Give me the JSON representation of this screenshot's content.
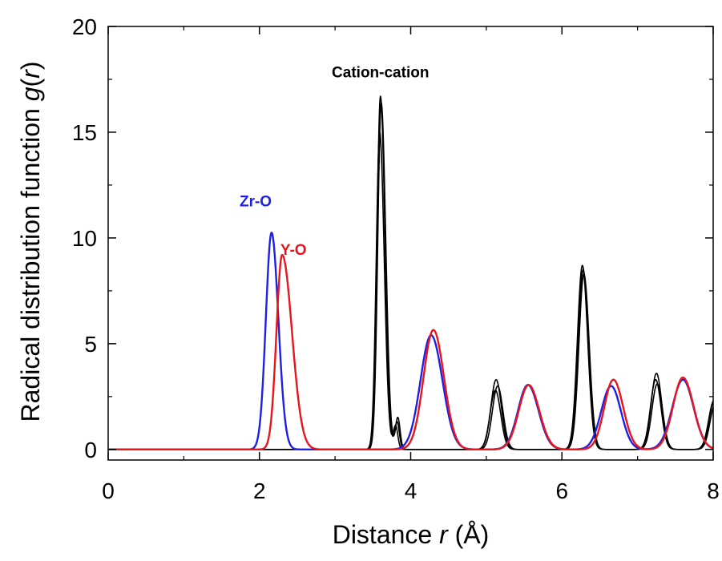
{
  "chart_data": {
    "type": "line",
    "xlabel": {
      "prefix": "Distance ",
      "var": "r",
      "suffix": " (Å)"
    },
    "ylabel": {
      "prefix": "Radical distribution function ",
      "var": "g",
      "open": "(",
      "var2": "r",
      "close": ")"
    },
    "xlim": [
      0,
      8
    ],
    "ylim": [
      -0.5,
      20
    ],
    "xticks": [
      0,
      2,
      4,
      6,
      8
    ],
    "yticks": [
      0,
      5,
      10,
      15,
      20
    ],
    "grid": false,
    "colors": {
      "zr_o": "#1f1fe6",
      "y_o": "#e8161b",
      "cation": "#000000"
    },
    "annotations": [
      {
        "text": "Cation-cation",
        "x": 3.6,
        "y": 17.6,
        "color": "#000000"
      },
      {
        "text": "Zr-O",
        "x": 1.95,
        "y": 11.5,
        "color": "#1f1fe6"
      },
      {
        "text": "Y-O",
        "x": 2.45,
        "y": 9.2,
        "color": "#e8161b"
      }
    ],
    "series": [
      {
        "key": "zr_o",
        "peaks": [
          {
            "mu": 2.16,
            "amp": 10.25,
            "sl": 0.075,
            "sr": 0.09
          },
          {
            "mu": 4.27,
            "amp": 5.4,
            "sl": 0.14,
            "sr": 0.15
          },
          {
            "mu": 5.55,
            "amp": 3.05,
            "sl": 0.13,
            "sr": 0.14
          },
          {
            "mu": 6.65,
            "amp": 3.0,
            "sl": 0.13,
            "sr": 0.13
          },
          {
            "mu": 7.6,
            "amp": 3.3,
            "sl": 0.14,
            "sr": 0.14
          }
        ]
      },
      {
        "key": "y_o",
        "peaks": [
          {
            "mu": 2.3,
            "amp": 9.2,
            "sl": 0.075,
            "sr": 0.13
          },
          {
            "mu": 4.3,
            "amp": 5.65,
            "sl": 0.13,
            "sr": 0.14
          },
          {
            "mu": 5.56,
            "amp": 3.05,
            "sl": 0.13,
            "sr": 0.14
          },
          {
            "mu": 6.68,
            "amp": 3.3,
            "sl": 0.12,
            "sr": 0.13
          },
          {
            "mu": 7.6,
            "amp": 3.4,
            "sl": 0.13,
            "sr": 0.14
          }
        ]
      },
      {
        "key": "cation",
        "peaks": [
          {
            "mu": 3.6,
            "amp": 16.7,
            "sl": 0.045,
            "sr": 0.06
          },
          {
            "mu": 3.82,
            "amp": 1.3,
            "sl": 0.03,
            "sr": 0.03
          },
          {
            "mu": 5.13,
            "amp": 3.3,
            "sl": 0.07,
            "sr": 0.07
          },
          {
            "mu": 6.27,
            "amp": 8.7,
            "sl": 0.065,
            "sr": 0.07
          },
          {
            "mu": 7.25,
            "amp": 3.6,
            "sl": 0.07,
            "sr": 0.07
          },
          {
            "mu": 8.02,
            "amp": 2.4,
            "sl": 0.07,
            "sr": 0.07
          }
        ]
      },
      {
        "key": "cation",
        "peaks": [
          {
            "mu": 3.61,
            "amp": 16.4,
            "sl": 0.045,
            "sr": 0.06
          },
          {
            "mu": 3.83,
            "amp": 1.5,
            "sl": 0.03,
            "sr": 0.03
          },
          {
            "mu": 5.15,
            "amp": 3.0,
            "sl": 0.07,
            "sr": 0.07
          },
          {
            "mu": 6.28,
            "amp": 8.5,
            "sl": 0.065,
            "sr": 0.07
          },
          {
            "mu": 7.24,
            "amp": 3.3,
            "sl": 0.07,
            "sr": 0.07
          },
          {
            "mu": 8.03,
            "amp": 2.2,
            "sl": 0.07,
            "sr": 0.07
          }
        ]
      },
      {
        "key": "cation",
        "peaks": [
          {
            "mu": 3.59,
            "amp": 15.0,
            "sl": 0.045,
            "sr": 0.06
          },
          {
            "mu": 3.8,
            "amp": 1.1,
            "sl": 0.03,
            "sr": 0.03
          },
          {
            "mu": 5.12,
            "amp": 2.8,
            "sl": 0.07,
            "sr": 0.07
          },
          {
            "mu": 6.29,
            "amp": 8.3,
            "sl": 0.065,
            "sr": 0.07
          },
          {
            "mu": 7.26,
            "amp": 3.1,
            "sl": 0.07,
            "sr": 0.07
          },
          {
            "mu": 8.01,
            "amp": 2.3,
            "sl": 0.07,
            "sr": 0.07
          }
        ]
      }
    ]
  }
}
